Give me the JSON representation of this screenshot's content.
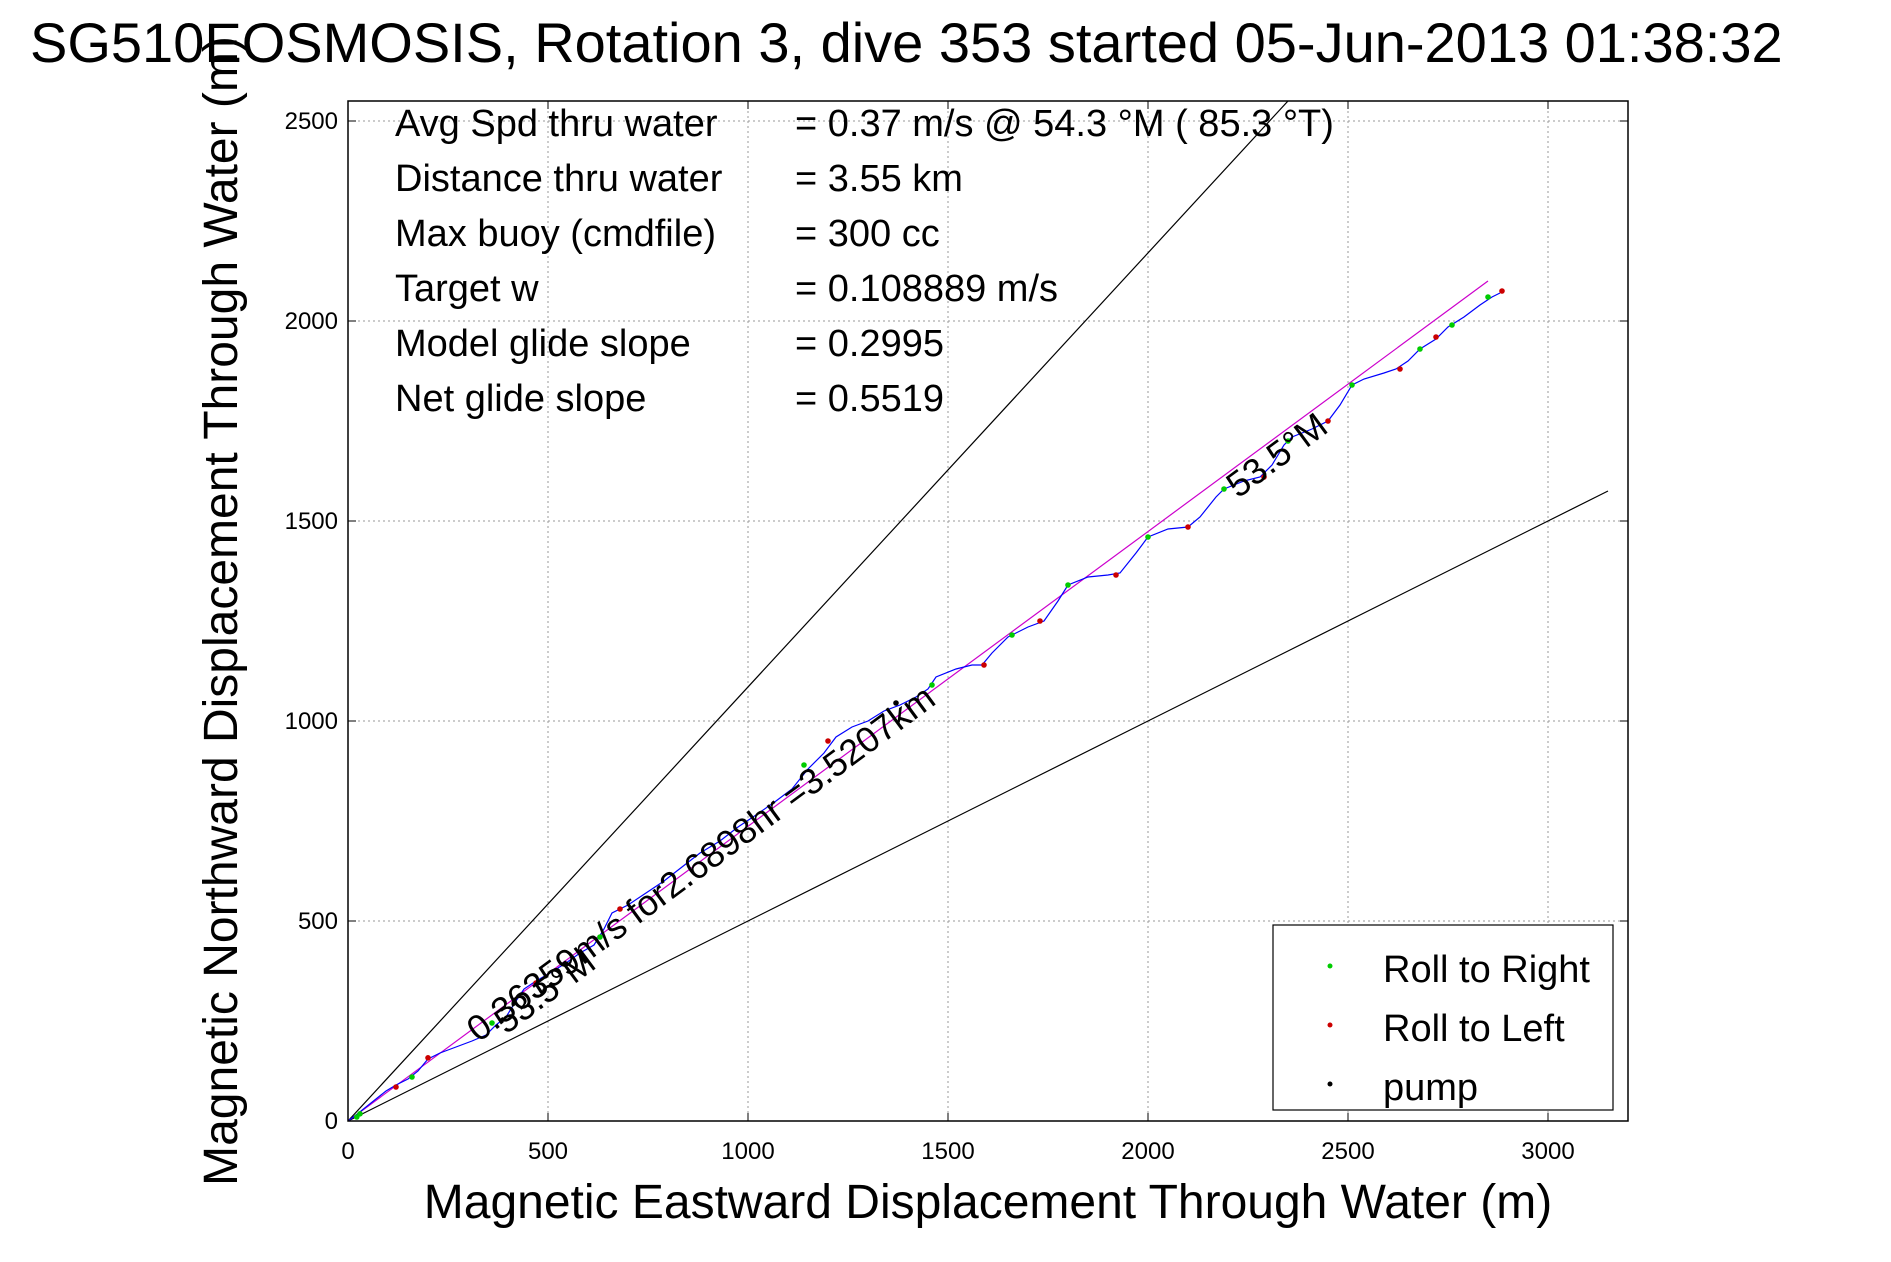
{
  "chart_data": {
    "type": "line",
    "title": "SG510EOSMOSIS, Rotation 3, dive 353 started 05-Jun-2013 01:38:32",
    "xlabel": "Magnetic Eastward Displacement Through Water (m)",
    "ylabel": "Magnetic Northward Displacement Through Water (m)",
    "xlim": [
      0,
      3200
    ],
    "ylim": [
      0,
      2550
    ],
    "xticks": [
      0,
      500,
      1000,
      1500,
      2000,
      2500,
      3000
    ],
    "yticks": [
      0,
      500,
      1000,
      1500,
      2000,
      2500
    ],
    "grid": true,
    "legend_position": "bottom-right",
    "info_lines": [
      {
        "label": "Avg Spd thru water",
        "value": "=  0.37 m/s @  54.3 °M ( 85.3 °T)"
      },
      {
        "label": "Distance thru water",
        "value": "=  3.55 km"
      },
      {
        "label": "Max buoy (cmdfile)",
        "value": "= 300 cc"
      },
      {
        "label": "Target w",
        "value": "= 0.108889 m/s"
      },
      {
        "label": "Model glide slope",
        "value": "= 0.2995"
      },
      {
        "label": "Net glide slope",
        "value": "= 0.5519"
      }
    ],
    "annotations": [
      {
        "text": "0.36359m/s for2.6898hr =3.5207km",
        "x": 900,
        "y": 620,
        "angle_deg": -36.5
      },
      {
        "text": "53.5°M",
        "x": 510,
        "y": 300,
        "angle_deg": -36.5
      },
      {
        "text": "53.5°M",
        "x": 2340,
        "y": 1640,
        "angle_deg": -36.5
      }
    ],
    "reference_lines": [
      {
        "name": "upper-bound",
        "color": "#000000",
        "points": [
          [
            0,
            0
          ],
          [
            2350,
            2550
          ]
        ]
      },
      {
        "name": "lower-bound",
        "color": "#000000",
        "points": [
          [
            0,
            0
          ],
          [
            3150,
            1575
          ]
        ]
      },
      {
        "name": "net-heading",
        "color": "#cc00cc",
        "points": [
          [
            0,
            0
          ],
          [
            2850,
            2100
          ]
        ]
      }
    ],
    "series": [
      {
        "name": "track",
        "color": "#0000ff",
        "points": [
          [
            0,
            0
          ],
          [
            20,
            15
          ],
          [
            45,
            35
          ],
          [
            70,
            55
          ],
          [
            95,
            75
          ],
          [
            120,
            90
          ],
          [
            150,
            105
          ],
          [
            175,
            125
          ],
          [
            200,
            155
          ],
          [
            230,
            170
          ],
          [
            270,
            185
          ],
          [
            310,
            200
          ],
          [
            345,
            215
          ],
          [
            370,
            240
          ],
          [
            395,
            260
          ],
          [
            420,
            300
          ],
          [
            440,
            330
          ],
          [
            470,
            350
          ],
          [
            505,
            370
          ],
          [
            545,
            395
          ],
          [
            580,
            420
          ],
          [
            615,
            440
          ],
          [
            640,
            480
          ],
          [
            660,
            520
          ],
          [
            700,
            540
          ],
          [
            745,
            570
          ],
          [
            790,
            600
          ],
          [
            835,
            635
          ],
          [
            880,
            670
          ],
          [
            930,
            700
          ],
          [
            975,
            735
          ],
          [
            1020,
            765
          ],
          [
            1070,
            800
          ],
          [
            1110,
            830
          ],
          [
            1150,
            880
          ],
          [
            1190,
            920
          ],
          [
            1220,
            960
          ],
          [
            1260,
            985
          ],
          [
            1300,
            1000
          ],
          [
            1340,
            1025
          ],
          [
            1380,
            1040
          ],
          [
            1420,
            1060
          ],
          [
            1450,
            1080
          ],
          [
            1470,
            1110
          ],
          [
            1520,
            1130
          ],
          [
            1560,
            1140
          ],
          [
            1585,
            1140
          ],
          [
            1610,
            1170
          ],
          [
            1650,
            1210
          ],
          [
            1700,
            1235
          ],
          [
            1740,
            1250
          ],
          [
            1775,
            1300
          ],
          [
            1800,
            1340
          ],
          [
            1850,
            1360
          ],
          [
            1900,
            1365
          ],
          [
            1930,
            1370
          ],
          [
            1970,
            1420
          ],
          [
            2000,
            1460
          ],
          [
            2050,
            1480
          ],
          [
            2100,
            1485
          ],
          [
            2130,
            1510
          ],
          [
            2170,
            1560
          ],
          [
            2190,
            1580
          ],
          [
            2240,
            1600
          ],
          [
            2280,
            1610
          ],
          [
            2310,
            1640
          ],
          [
            2340,
            1690
          ],
          [
            2360,
            1710
          ],
          [
            2410,
            1730
          ],
          [
            2450,
            1750
          ],
          [
            2480,
            1790
          ],
          [
            2510,
            1840
          ],
          [
            2540,
            1855
          ],
          [
            2590,
            1870
          ],
          [
            2620,
            1880
          ],
          [
            2650,
            1900
          ],
          [
            2680,
            1930
          ],
          [
            2720,
            1955
          ],
          [
            2750,
            1985
          ],
          [
            2790,
            2010
          ],
          [
            2830,
            2040
          ],
          [
            2860,
            2060
          ],
          [
            2880,
            2070
          ]
        ]
      },
      {
        "name": "Roll to Right",
        "color": "#00cc00",
        "points": [
          [
            22,
            10
          ],
          [
            30,
            18
          ],
          [
            160,
            110
          ],
          [
            360,
            245
          ],
          [
            630,
            460
          ],
          [
            1140,
            890
          ],
          [
            1460,
            1090
          ],
          [
            1660,
            1215
          ],
          [
            1800,
            1340
          ],
          [
            2000,
            1460
          ],
          [
            2190,
            1580
          ],
          [
            2350,
            1700
          ],
          [
            2510,
            1840
          ],
          [
            2680,
            1930
          ],
          [
            2760,
            1990
          ],
          [
            2850,
            2060
          ]
        ]
      },
      {
        "name": "Roll to Left",
        "color": "#cc0000",
        "points": [
          [
            120,
            85
          ],
          [
            200,
            158
          ],
          [
            470,
            345
          ],
          [
            680,
            530
          ],
          [
            1200,
            950
          ],
          [
            1590,
            1140
          ],
          [
            1730,
            1250
          ],
          [
            1920,
            1365
          ],
          [
            2100,
            1485
          ],
          [
            2290,
            1610
          ],
          [
            2450,
            1750
          ],
          [
            2630,
            1880
          ],
          [
            2720,
            1960
          ],
          [
            2885,
            2075
          ]
        ]
      },
      {
        "name": "pump",
        "color": "#000000",
        "points": [
          [
            1370,
            1045
          ]
        ]
      }
    ]
  },
  "legend": {
    "entries": [
      {
        "label": "Roll to Right",
        "color": "#00cc00"
      },
      {
        "label": "Roll to Left",
        "color": "#cc0000"
      },
      {
        "label": "pump",
        "color": "#000000"
      }
    ]
  }
}
